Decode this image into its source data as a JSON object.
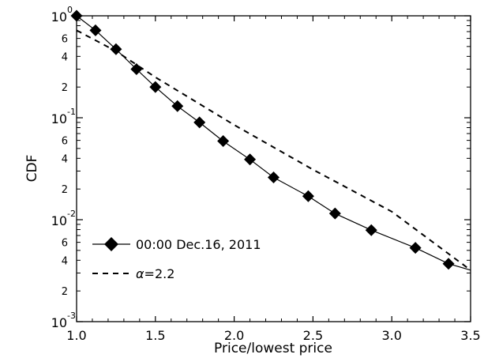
{
  "chart_data": {
    "type": "line",
    "title": "",
    "xlabel": "Price/lowest price",
    "ylabel": "CDF",
    "xlim": [
      1.0,
      3.5
    ],
    "ylim": [
      0.001,
      1
    ],
    "yscale": "log",
    "grid": false,
    "legend_position": "bottom-left",
    "x_ticks": [
      "1.0",
      "1.5",
      "2.0",
      "2.5",
      "3.0",
      "3.5"
    ],
    "y_major_ticks": [
      {
        "base": "10",
        "exp": "0"
      },
      {
        "base": "10",
        "exp": "-1"
      },
      {
        "base": "10",
        "exp": "-2"
      },
      {
        "base": "10",
        "exp": "-3"
      }
    ],
    "y_minor_labels": [
      "6",
      "4",
      "2"
    ],
    "series": [
      {
        "name": "00:00 Dec.16, 2011",
        "style": "solid line with diamond markers",
        "color": "#000000",
        "x": [
          1.0,
          1.12,
          1.25,
          1.38,
          1.5,
          1.64,
          1.78,
          1.93,
          2.1,
          2.25,
          2.47,
          2.64,
          2.87,
          3.15,
          3.36,
          3.5
        ],
        "y": [
          1.0,
          0.72,
          0.47,
          0.3,
          0.2,
          0.13,
          0.09,
          0.059,
          0.039,
          0.026,
          0.017,
          0.0115,
          0.0079,
          0.0053,
          0.0037,
          0.0032
        ]
      },
      {
        "name": "α=2.2",
        "label_symbol": "α",
        "label_value": "=2.2",
        "style": "dashed line",
        "color": "#000000",
        "x": [
          1.0,
          1.25,
          1.5,
          2.0,
          2.5,
          3.0,
          3.5
        ],
        "y": [
          0.72,
          0.45,
          0.25,
          0.085,
          0.031,
          0.012,
          0.0032
        ]
      }
    ]
  }
}
